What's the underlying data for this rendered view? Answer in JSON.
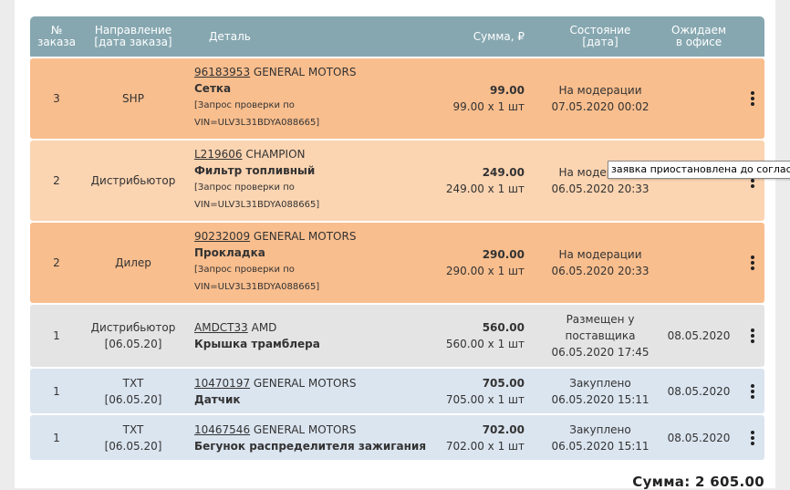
{
  "header": {
    "num": "№ заказа",
    "direction": "Направление [дата заказа]",
    "detail": "Деталь",
    "sum": "Сумма, ₽",
    "status": "Состояние [дата]",
    "expected": "Ожидаем в офисе"
  },
  "rows": [
    {
      "num": "3",
      "direction": "SHP",
      "direction_date": "",
      "part_number": "96183953",
      "brand": "GENERAL MOTORS",
      "name": "Сетка",
      "note": "[Запрос проверки по VIN=ULV3L31BDYA088665]",
      "amount": "99.00",
      "qty": "99.00 x 1 шт",
      "status": "На модерации",
      "status_date": "07.05.2020 00:02",
      "expected": "",
      "bg": "#f9be8e"
    },
    {
      "num": "2",
      "direction": "Дистрибьютор",
      "direction_date": "",
      "part_number": "L219606",
      "brand": "CHAMPION",
      "name": "Фильтр топливный",
      "note": "[Запрос проверки по VIN=ULV3L31BDYA088665]",
      "amount": "249.00",
      "qty": "249.00 x 1 шт",
      "status": "На модерации",
      "status_date": "06.05.2020 20:33",
      "expected": "",
      "bg": "#fbd4b1"
    },
    {
      "num": "2",
      "direction": "Дилер",
      "direction_date": "",
      "part_number": "90232009",
      "brand": "GENERAL MOTORS",
      "name": "Прокладка",
      "note": "[Запрос проверки по VIN=ULV3L31BDYA088665]",
      "amount": "290.00",
      "qty": "290.00 x 1 шт",
      "status": "На модерации",
      "status_date": "06.05.2020 20:33",
      "expected": "",
      "bg": "#f9be8e"
    },
    {
      "num": "1",
      "direction": "Дистрибьютор",
      "direction_date": "[06.05.20]",
      "part_number": "AMDCT33",
      "brand": "AMD",
      "name": "Крышка трамблера",
      "note": "",
      "amount": "560.00",
      "qty": "560.00 x 1 шт",
      "status": "Размещен у поставщика",
      "status_date": "06.05.2020 17:45",
      "expected": "08.05.2020",
      "bg": "#e4e4e4"
    },
    {
      "num": "1",
      "direction": "TXT",
      "direction_date": "[06.05.20]",
      "part_number": "10470197",
      "brand": "GENERAL MOTORS",
      "name": "Датчик",
      "note": "",
      "amount": "705.00",
      "qty": "705.00 x 1 шт",
      "status": "Закуплено",
      "status_date": "06.05.2020 15:11",
      "expected": "08.05.2020",
      "bg": "#dbe5f0"
    },
    {
      "num": "1",
      "direction": "TXT",
      "direction_date": "[06.05.20]",
      "part_number": "10467546",
      "brand": "GENERAL MOTORS",
      "name": "Бегунок распределителя зажигания",
      "note": "",
      "amount": "702.00",
      "qty": "702.00 x 1 шт",
      "status": "Закуплено",
      "status_date": "06.05.2020 15:11",
      "expected": "08.05.2020",
      "bg": "#dbe5f0"
    }
  ],
  "tooltip": "заявка приостановлена до согласован",
  "total": "Сумма: 2 605.00",
  "icons": {
    "menu": "vertical-dots-icon"
  }
}
